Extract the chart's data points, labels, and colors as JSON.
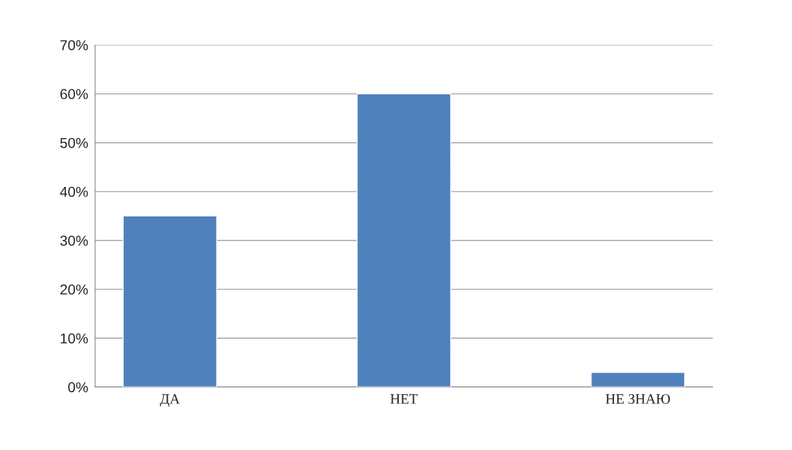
{
  "chart_data": {
    "type": "bar",
    "categories": [
      "ДА",
      "НЕТ",
      "НЕ ЗНАЮ"
    ],
    "values": [
      35,
      60,
      3
    ],
    "color": "#4f81bd",
    "ylim": [
      0,
      70
    ],
    "yticks": [
      {
        "value": 0,
        "label": "0%"
      },
      {
        "value": 10,
        "label": "10%"
      },
      {
        "value": 20,
        "label": "20%"
      },
      {
        "value": 30,
        "label": "30%"
      },
      {
        "value": 40,
        "label": "40%"
      },
      {
        "value": 50,
        "label": "50%"
      },
      {
        "value": 60,
        "label": "60%"
      },
      {
        "value": 70,
        "label": "70%"
      }
    ],
    "grid": "y",
    "legend": false
  }
}
